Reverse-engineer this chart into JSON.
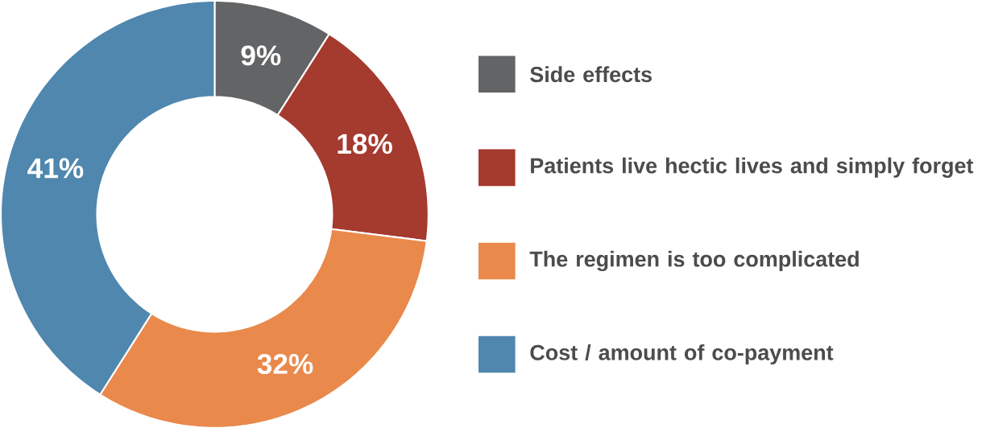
{
  "chart_data": {
    "type": "donut",
    "categories": [
      "Side effects",
      "Patients live hectic lives and simply forget",
      "The regimen is too complicated",
      "Cost / amount of co-payment"
    ],
    "values": [
      9,
      18,
      32,
      41
    ],
    "value_labels": [
      "9%",
      "18%",
      "32%",
      "41%"
    ],
    "colors": [
      "#636466",
      "#a53a2f",
      "#e9894c",
      "#4f87ae"
    ],
    "legend": "right"
  }
}
